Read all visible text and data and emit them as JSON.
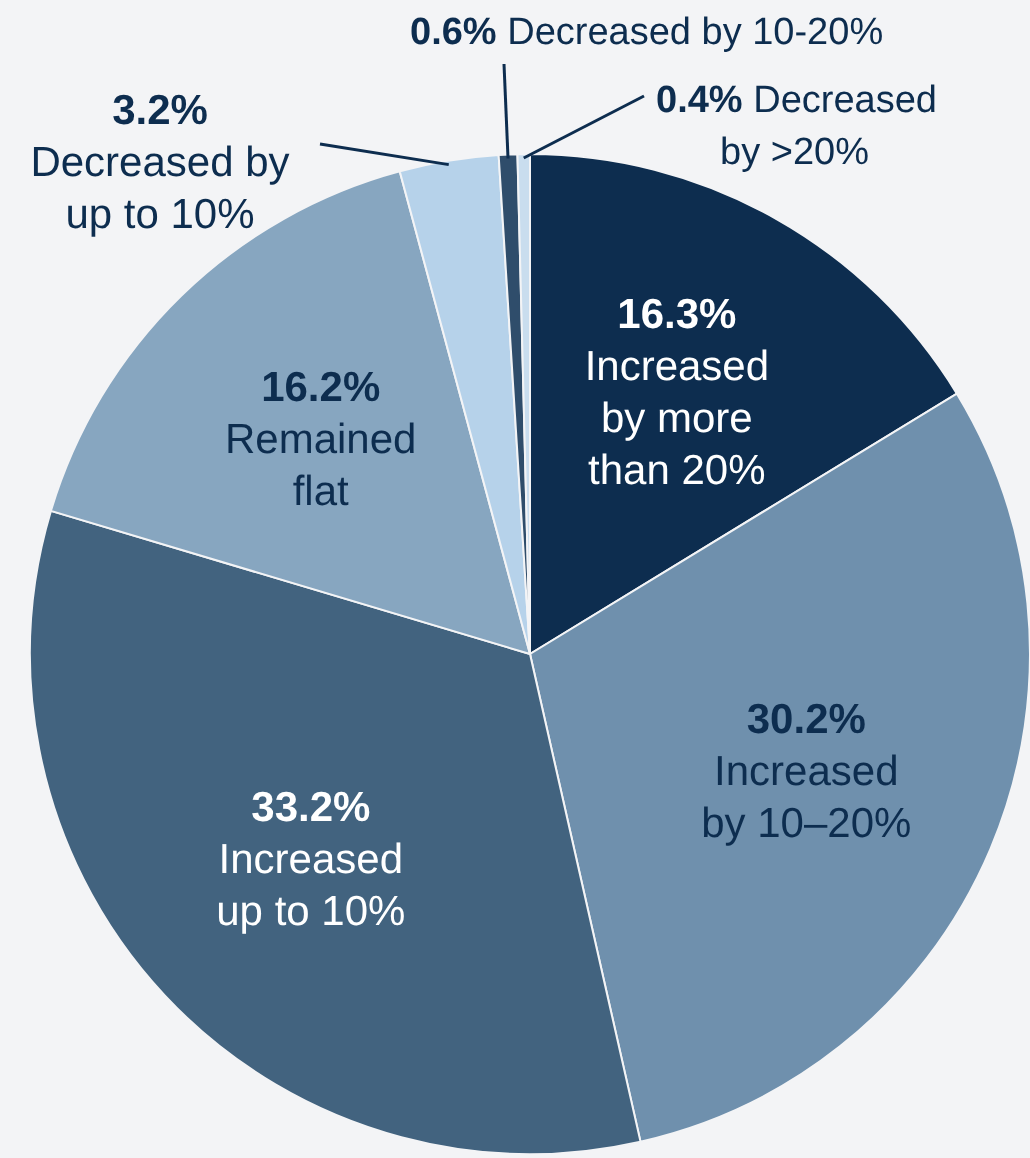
{
  "chart_data": {
    "type": "pie",
    "categories": [
      "Increased by more than 20%",
      "Increased by 10–20%",
      "Increased up to 10%",
      "Remained flat",
      "Decreased by up to 10%",
      "Decreased by 10-20%",
      "Decreased by >20%"
    ],
    "values": [
      16.3,
      30.2,
      33.2,
      16.2,
      3.2,
      0.6,
      0.4
    ],
    "colors": [
      "#0d2d4f",
      "#6f90ad",
      "#42637f",
      "#87a6c0",
      "#b6d2ea",
      "#2f4d6b",
      "#c9ddee"
    ],
    "value_labels": [
      "16.3%",
      "30.2%",
      "33.2%",
      "16.2%",
      "3.2%",
      "0.6%",
      "0.4%"
    ]
  }
}
